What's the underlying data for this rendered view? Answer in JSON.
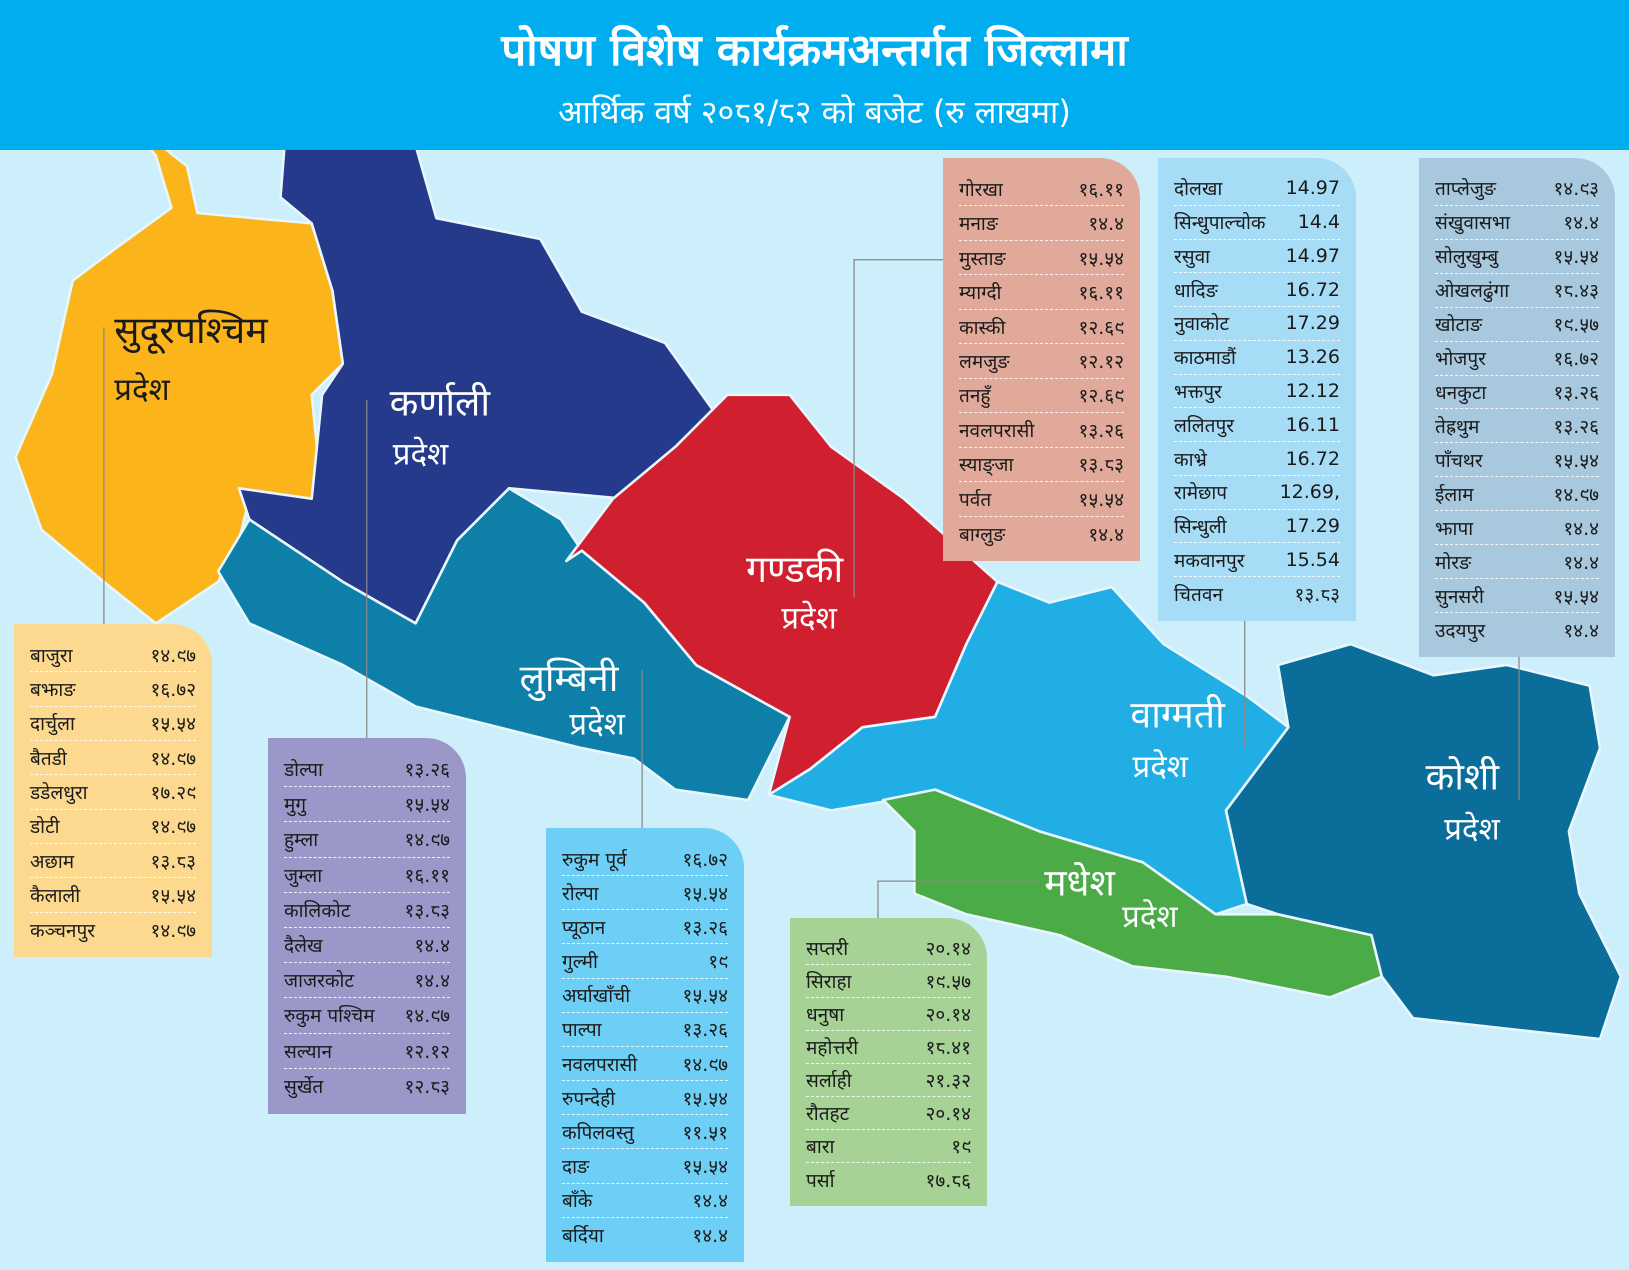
{
  "header": {
    "title": "पोषण विशेष कार्यक्रमअन्तर्गत जिल्लामा",
    "subtitle": "आर्थिक वर्ष २०८१/८२ को बजेट (रु लाखमा)"
  },
  "provinces": [
    {
      "name": "सुदूरपश्चिम",
      "label": "प्रदेश",
      "districts": [
        [
          "बाजुरा",
          "१४.९७"
        ],
        [
          "बझाङ",
          "१६.७२"
        ],
        [
          "दार्चुला",
          "१५.५४"
        ],
        [
          "बैतडी",
          "१४.९७"
        ],
        [
          "डडेलधुरा",
          "१७.२९"
        ],
        [
          "डोटी",
          "१४.९७"
        ],
        [
          "अछाम",
          "१३.८३"
        ],
        [
          "कैलाली",
          "१५.५४"
        ],
        [
          "कञ्चनपुर",
          "१४.९७"
        ]
      ]
    },
    {
      "name": "कर्णाली",
      "label": "प्रदेश",
      "districts": [
        [
          "डोल्पा",
          "१३.२६"
        ],
        [
          "मुगु",
          "१५.५४"
        ],
        [
          "हुम्ला",
          "१४.९७"
        ],
        [
          "जुम्ला",
          "१६.११"
        ],
        [
          "कालिकोट",
          "१३.८३"
        ],
        [
          "दैलेख",
          "१४.४"
        ],
        [
          "जाजरकोट",
          "१४.४"
        ],
        [
          "रुकुम पश्चिम",
          "१४.९७"
        ],
        [
          "सल्यान",
          "१२.१२"
        ],
        [
          "सुर्खेत",
          "१२.८३"
        ]
      ]
    },
    {
      "name": "लुम्बिनी",
      "label": "प्रदेश",
      "districts": [
        [
          "रुकुम पूर्व",
          "१६.७२"
        ],
        [
          "रोल्पा",
          "१५.५४"
        ],
        [
          "प्यूठान",
          "१३.२६"
        ],
        [
          "गुल्मी",
          "१९"
        ],
        [
          "अर्घाखाँची",
          "१५.५४"
        ],
        [
          "पाल्पा",
          "१३.२६"
        ],
        [
          "नवलपरासी",
          "१४.९७"
        ],
        [
          "रुपन्देही",
          "१५.५४"
        ],
        [
          "कपिलवस्तु",
          "११.५१"
        ],
        [
          "दाङ",
          "१५.५४"
        ],
        [
          "बाँके",
          "१४.४"
        ],
        [
          "बर्दिया",
          "१४.४"
        ]
      ]
    },
    {
      "name": "गण्डकी",
      "label": "प्रदेश",
      "districts": [
        [
          "गोरखा",
          "१६.११"
        ],
        [
          "मनाङ",
          "१४.४"
        ],
        [
          "मुस्ताङ",
          "१५.५४"
        ],
        [
          "म्याग्दी",
          "१६.११"
        ],
        [
          "कास्की",
          "१२.६९"
        ],
        [
          "लमजुङ",
          "१२.१२"
        ],
        [
          "तनहुँ",
          "१२.६९"
        ],
        [
          "नवलपरासी",
          "१३.२६"
        ],
        [
          "स्याङ्जा",
          "१३.८३"
        ],
        [
          "पर्वत",
          "१५.५४"
        ],
        [
          "बाग्लुङ",
          "१४.४"
        ]
      ]
    },
    {
      "name": "वाग्मती",
      "label": "प्रदेश",
      "districts": [
        [
          "दोलखा",
          "14.97"
        ],
        [
          "सिन्धुपाल्चोक",
          "14.4"
        ],
        [
          "रसुवा",
          "14.97"
        ],
        [
          "धादिङ",
          "16.72"
        ],
        [
          "नुवाकोट",
          "17.29"
        ],
        [
          "काठमाडौं",
          "13.26"
        ],
        [
          "भक्तपुर",
          "12.12"
        ],
        [
          "ललितपुर",
          "16.11"
        ],
        [
          "काभ्रे",
          "16.72"
        ],
        [
          "रामेछाप",
          "12.69,"
        ],
        [
          "सिन्धुली",
          "17.29"
        ],
        [
          "मकवानपुर",
          "15.54"
        ],
        [
          "चितवन",
          "१३.८३"
        ]
      ]
    },
    {
      "name": "कोशी",
      "label": "प्रदेश",
      "districts": [
        [
          "ताप्लेजुङ",
          "१४.९३"
        ],
        [
          "संखुवासभा",
          "१४.४"
        ],
        [
          "सोलुखुम्बु",
          "१५.५४"
        ],
        [
          "ओखलढुंगा",
          "१८.४३"
        ],
        [
          "खोटाङ",
          "१९.५७"
        ],
        [
          "भोजपुर",
          "१६.७२"
        ],
        [
          "धनकुटा",
          "१३.२६"
        ],
        [
          "तेह्रथुम",
          "१३.२६"
        ],
        [
          "पाँचथर",
          "१५.५४"
        ],
        [
          "ईलाम",
          "१४.९७"
        ],
        [
          "झापा",
          "१४.४"
        ],
        [
          "मोरङ",
          "१४.४"
        ],
        [
          "सुनसरी",
          "१५.५४"
        ],
        [
          "उदयपुर",
          "१४.४"
        ]
      ]
    },
    {
      "name": "मधेश",
      "label": "प्रदेश",
      "districts": [
        [
          "सप्तरी",
          "२०.१४"
        ],
        [
          "सिराहा",
          "१९.५७"
        ],
        [
          "धनुषा",
          "२०.१४"
        ],
        [
          "महोत्तरी",
          "१८.४१"
        ],
        [
          "सर्लाही",
          "२१.३२"
        ],
        [
          "रौतहट",
          "२०.१४"
        ],
        [
          "बारा",
          "१९"
        ],
        [
          "पर्सा",
          "१७.८६"
        ]
      ]
    }
  ]
}
